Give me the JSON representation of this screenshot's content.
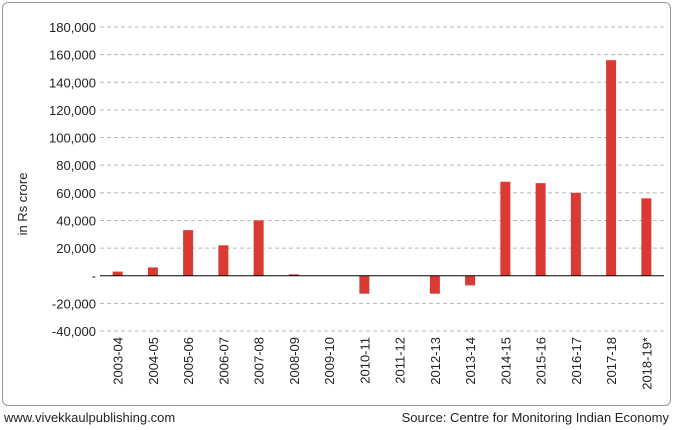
{
  "chart_data": {
    "type": "bar",
    "ylabel": "in Rs crore",
    "ylim": [
      -40000,
      180000
    ],
    "yticks": [
      -40000,
      -20000,
      0,
      20000,
      40000,
      60000,
      80000,
      100000,
      120000,
      140000,
      160000,
      180000
    ],
    "ytick_labels": [
      "-40,000",
      "-20,000",
      "-",
      "20,000",
      "40,000",
      "60,000",
      "80,000",
      "100,000",
      "120,000",
      "140,000",
      "160,000",
      "180,000"
    ],
    "categories": [
      "2003-04",
      "2004-05",
      "2005-06",
      "2006-07",
      "2007-08",
      "2008-09",
      "2009-10",
      "2010-11",
      "2011-12",
      "2012-13",
      "2013-14",
      "2014-15",
      "2015-16",
      "2016-17",
      "2017-18",
      "2018-19*"
    ],
    "values": [
      3000,
      6000,
      33000,
      22000,
      40000,
      1000,
      0,
      -13000,
      0,
      -13000,
      -7000,
      68000,
      67000,
      60000,
      156000,
      56000
    ],
    "bar_color": "#d93a34",
    "grid": true,
    "grid_style": "dashed"
  },
  "footer": {
    "website": "www.vivekkaulpublishing.com",
    "source": "Source: Centre for Monitoring Indian Economy"
  }
}
